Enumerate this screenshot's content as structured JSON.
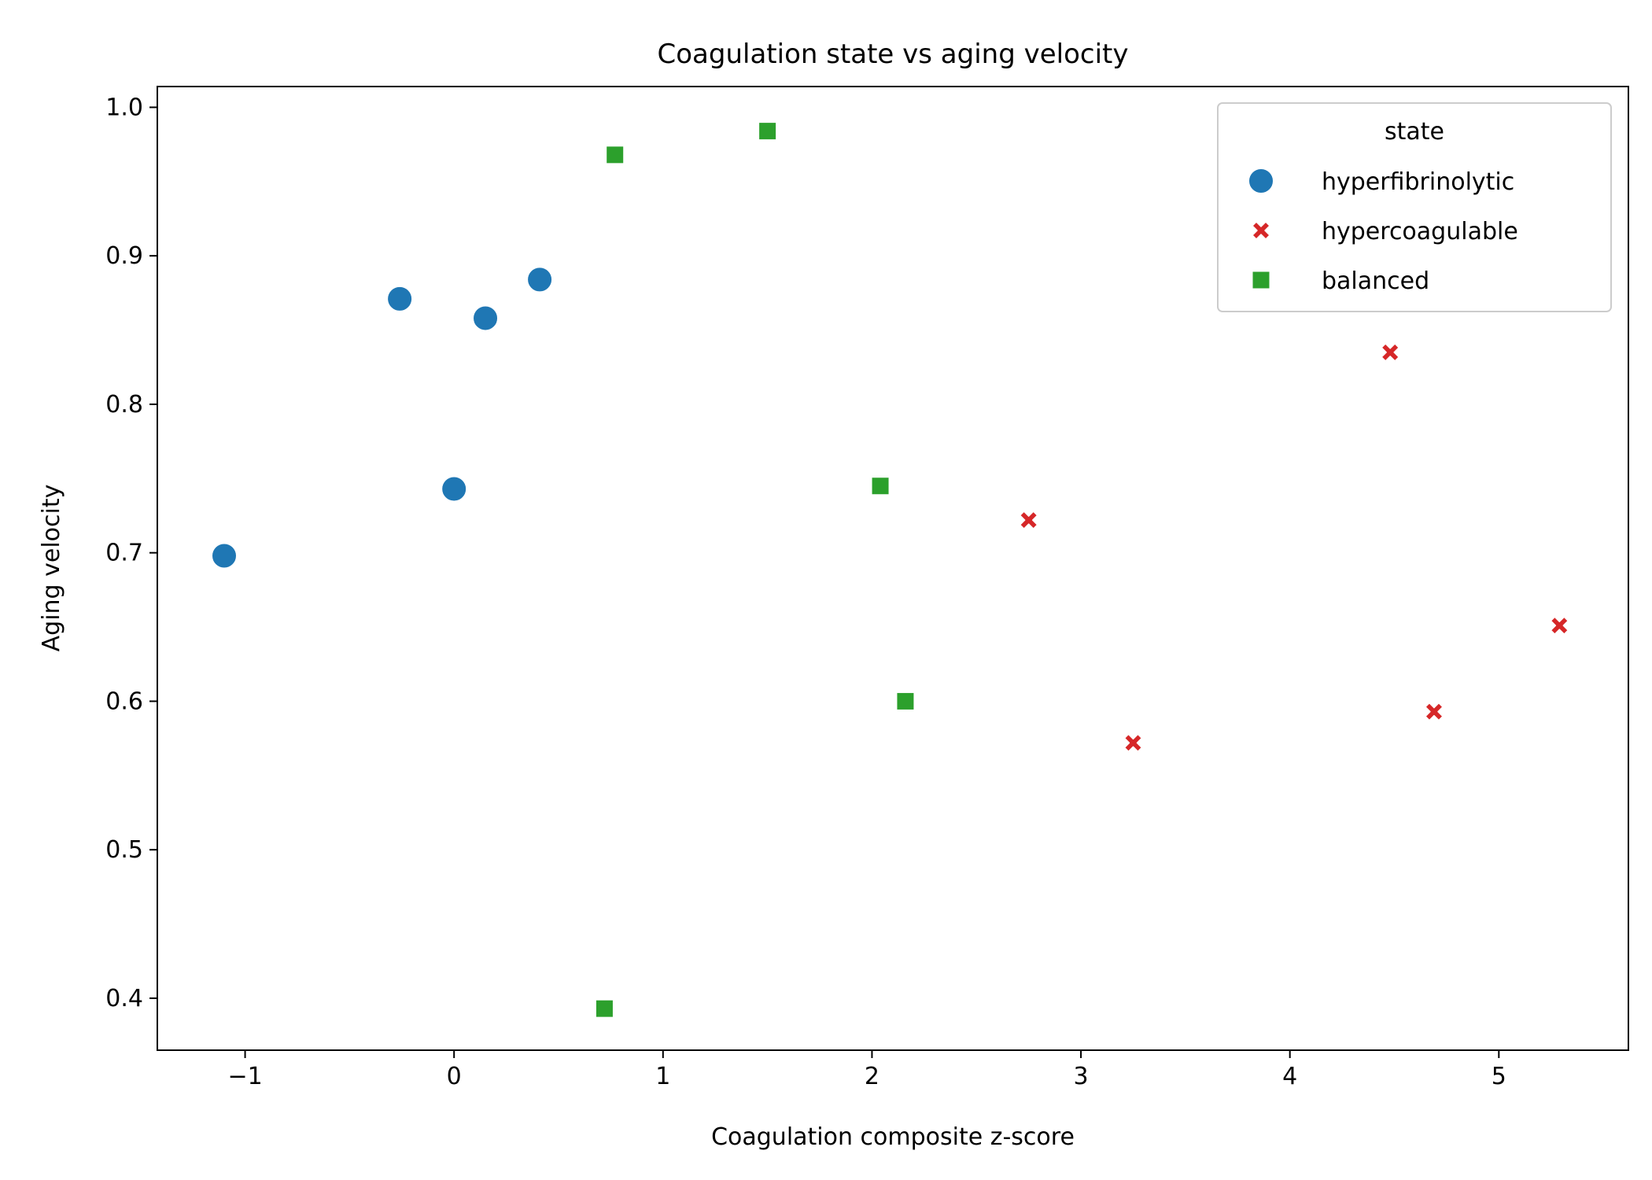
{
  "chart_data": {
    "type": "scatter",
    "title": "Coagulation state vs aging velocity",
    "xlabel": "Coagulation composite z-score",
    "ylabel": "Aging velocity",
    "xlim": [
      -1.42,
      5.62
    ],
    "ylim": [
      0.365,
      1.014
    ],
    "xticks": [
      -1,
      0,
      1,
      2,
      3,
      4,
      5
    ],
    "xtick_labels": [
      "−1",
      "0",
      "1",
      "2",
      "3",
      "4",
      "5"
    ],
    "yticks": [
      0.4,
      0.5,
      0.6,
      0.7,
      0.8,
      0.9,
      1.0
    ],
    "ytick_labels": [
      "0.4",
      "0.5",
      "0.6",
      "0.7",
      "0.8",
      "0.9",
      "1.0"
    ],
    "grid": false,
    "legend": {
      "title": "state",
      "placement": "top-right"
    },
    "series": [
      {
        "name": "hyperfibrinolytic",
        "marker": "circle",
        "color": "#1f77b4",
        "points": [
          {
            "x": -1.1,
            "y": 0.698
          },
          {
            "x": -0.26,
            "y": 0.871
          },
          {
            "x": 0.0,
            "y": 0.743
          },
          {
            "x": 0.15,
            "y": 0.858
          },
          {
            "x": 0.41,
            "y": 0.884
          }
        ]
      },
      {
        "name": "hypercoagulable",
        "marker": "x",
        "color": "#d62728",
        "points": [
          {
            "x": 2.75,
            "y": 0.722
          },
          {
            "x": 3.25,
            "y": 0.572
          },
          {
            "x": 4.48,
            "y": 0.835
          },
          {
            "x": 4.69,
            "y": 0.593
          },
          {
            "x": 5.29,
            "y": 0.651
          }
        ]
      },
      {
        "name": "balanced",
        "marker": "square",
        "color": "#2ca02c",
        "points": [
          {
            "x": 0.72,
            "y": 0.393
          },
          {
            "x": 0.77,
            "y": 0.968
          },
          {
            "x": 1.5,
            "y": 0.984
          },
          {
            "x": 2.04,
            "y": 0.745
          },
          {
            "x": 2.16,
            "y": 0.6
          }
        ]
      }
    ]
  }
}
